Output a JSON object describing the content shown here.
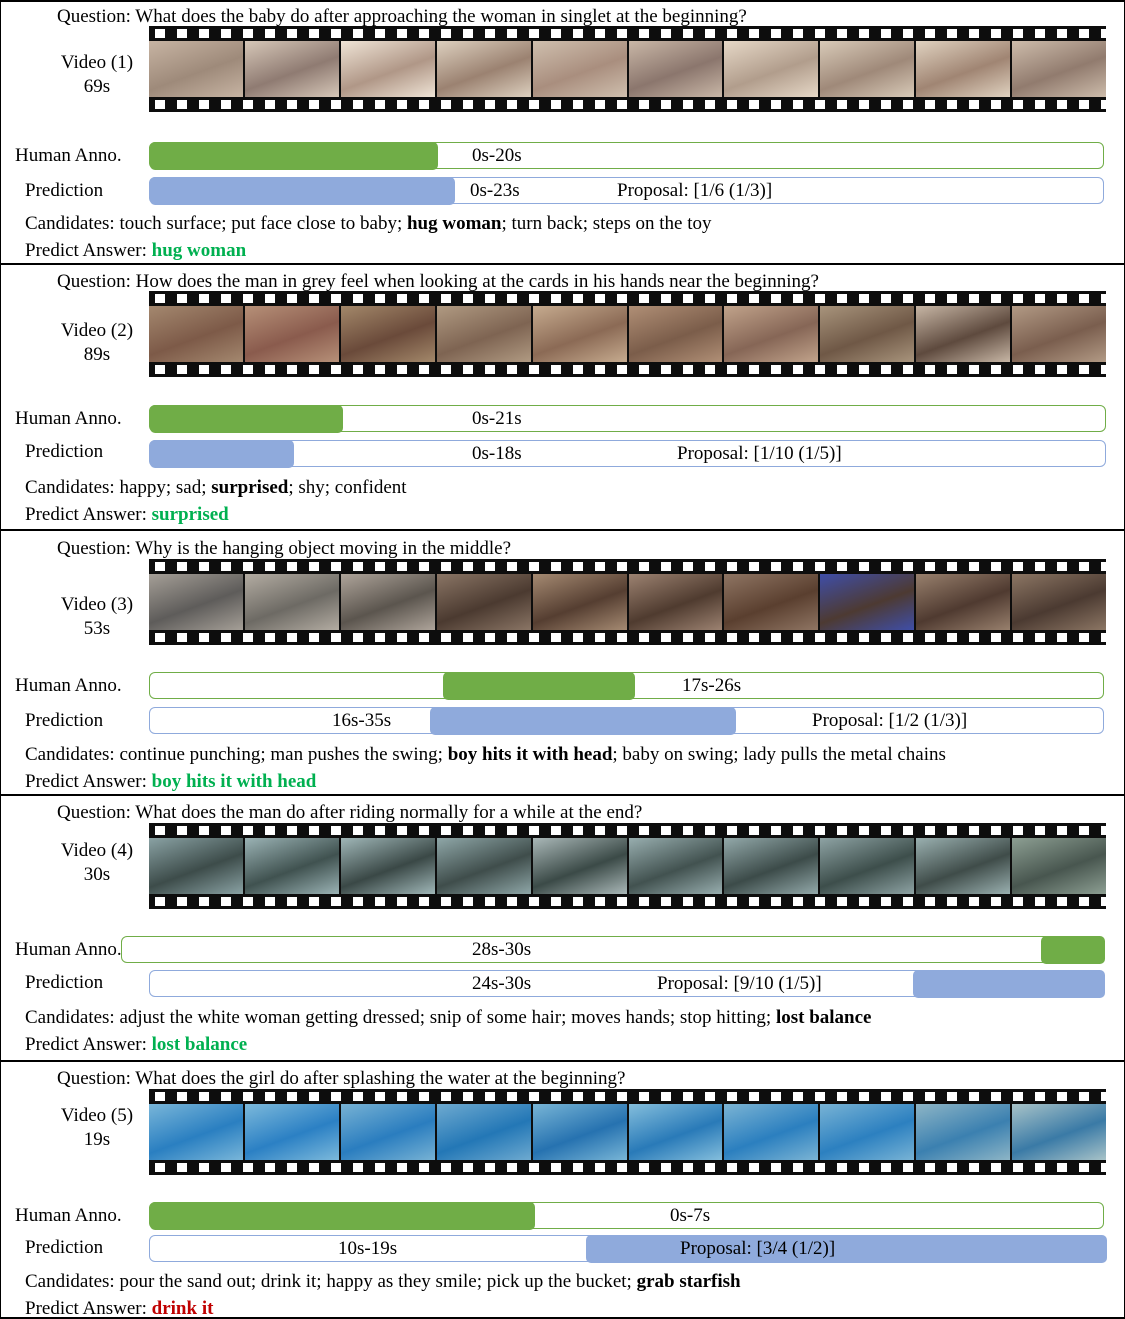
{
  "labels": {
    "question_prefix": "Question: ",
    "human": "Human Anno.",
    "prediction": "Prediction",
    "candidates_prefix": "Candidates: ",
    "answer_prefix": "Predict Answer: "
  },
  "colors": {
    "human_bar": "#70ad47",
    "prediction_bar": "#8faadc",
    "correct": "#00b050",
    "wrong": "#c00000"
  },
  "items": [
    {
      "question": "What does the baby do after approaching the woman in singlet at the beginning?",
      "video_label": "Video (1)",
      "duration": "69s",
      "human_range": "0s-20s",
      "pred_range": "0s-23s",
      "proposal": "Proposal: [1/6 (1/3)]",
      "candidates_parts": [
        "touch surface; put face close to baby; ",
        "hug woman",
        "; turn back; steps on the toy"
      ],
      "answer": "hug woman",
      "answer_correct": true
    },
    {
      "question": "How does the man in grey feel when looking at the cards in his hands near the beginning?",
      "video_label": "Video (2)",
      "duration": "89s",
      "human_range": "0s-21s",
      "pred_range": "0s-18s",
      "proposal": "Proposal: [1/10 (1/5)]",
      "candidates_parts": [
        "happy; sad; ",
        "surprised",
        "; shy; confident"
      ],
      "answer": "surprised",
      "answer_correct": true
    },
    {
      "question": "Why is the hanging object moving in the middle?",
      "video_label": "Video (3)",
      "duration": "53s",
      "human_range": "17s-26s",
      "pred_range": "16s-35s",
      "proposal": "Proposal: [1/2 (1/3)]",
      "candidates_parts": [
        "continue punching; man pushes the swing; ",
        "boy hits it with head",
        "; baby on swing; lady pulls the metal chains"
      ],
      "answer": "boy hits it with head",
      "answer_correct": true
    },
    {
      "question": "What does the man do after riding normally for a while at the end?",
      "video_label": "Video (4)",
      "duration": "30s",
      "human_range": "28s-30s",
      "pred_range": "24s-30s",
      "proposal": "Proposal: [9/10 (1/5)]",
      "candidates_parts": [
        "adjust the white woman getting dressed; snip of some hair; moves hands; stop hitting; ",
        "lost balance",
        ""
      ],
      "answer": "lost balance",
      "answer_correct": true
    },
    {
      "question": "What does the girl do after splashing the water at the beginning?",
      "video_label": "Video (5)",
      "duration": "19s",
      "human_range": "0s-7s",
      "pred_range": "10s-19s",
      "proposal": "Proposal: [3/4 (1/2)]",
      "candidates_parts": [
        "pour the sand out; drink it; happy as they smile; pick up the bucket; ",
        "grab starfish",
        ""
      ],
      "answer": "drink it",
      "answer_correct": false
    }
  ]
}
